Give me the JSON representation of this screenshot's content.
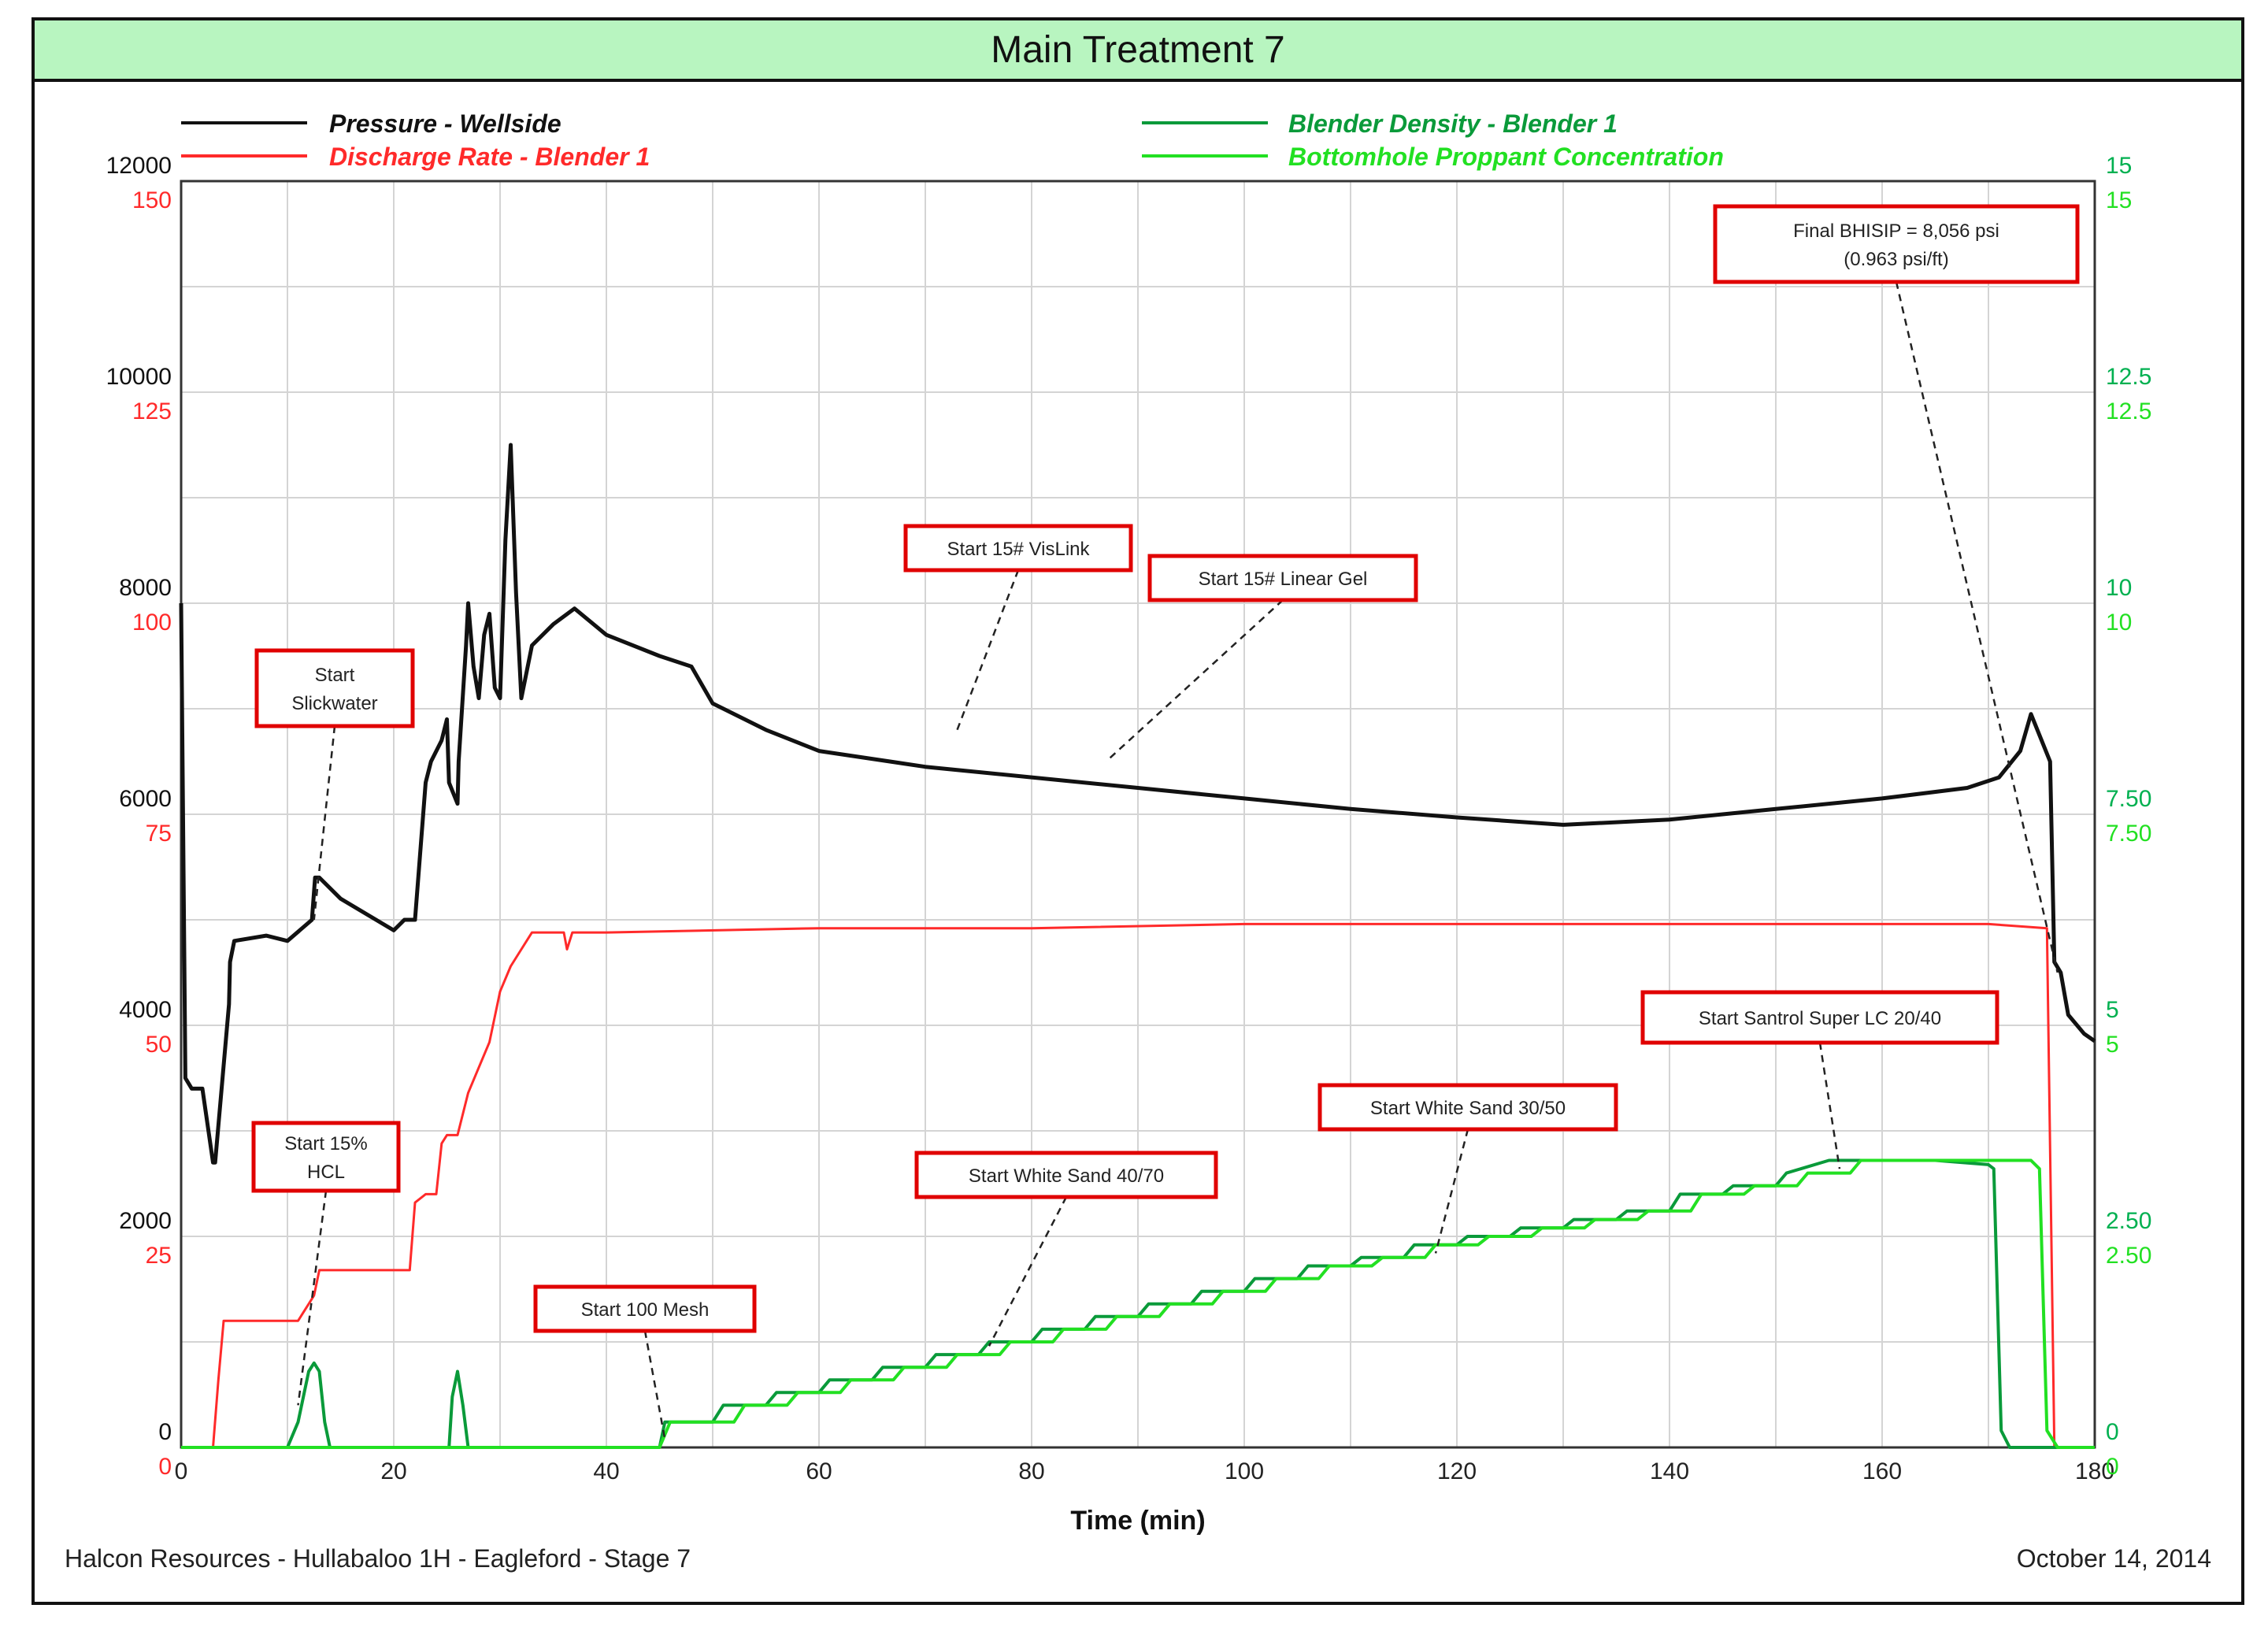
{
  "chart_data": {
    "type": "line",
    "title": "Main Treatment 7",
    "xlabel": "Time (min)",
    "xlim": [
      0,
      180
    ],
    "x_ticks": [
      0,
      20,
      40,
      60,
      80,
      100,
      120,
      140,
      160,
      180
    ],
    "axes": {
      "pressure": {
        "range": [
          0,
          12000
        ],
        "ticks": [
          0,
          2000,
          4000,
          6000,
          8000,
          10000,
          12000
        ],
        "color": "#111111"
      },
      "rate": {
        "range": [
          0,
          150
        ],
        "ticks": [
          0,
          25,
          50,
          75,
          100,
          125,
          150
        ],
        "color": "#ff2a2a"
      },
      "density": {
        "range": [
          0,
          15
        ],
        "ticks": [
          "0",
          "2.50",
          "5",
          "7.50",
          "10",
          "12.5",
          "15"
        ],
        "color": "#00b050"
      },
      "concentration": {
        "range": [
          0,
          15
        ],
        "ticks": [
          "0",
          "2.50",
          "5",
          "7.50",
          "10",
          "12.5",
          "15"
        ],
        "color": "#22e022"
      }
    },
    "legend": [
      {
        "name": "Pressure - Wellside",
        "color": "#111111"
      },
      {
        "name": "Discharge Rate - Blender 1",
        "color": "#ff2a2a"
      },
      {
        "name": "Blender Density - Blender 1",
        "color": "#0a9a3a"
      },
      {
        "name": "Bottomhole Proppant Concentration",
        "color": "#22e022"
      }
    ],
    "series": [
      {
        "name": "Pressure - Wellside",
        "axis": "pressure",
        "x": [
          0,
          0.4,
          1,
          1.2,
          2,
          3,
          3.2,
          4.5,
          4.6,
          5,
          8,
          10,
          12.3,
          12.6,
          13,
          15,
          20,
          21,
          22,
          23,
          23.5,
          24.5,
          25,
          25.2,
          26,
          26.1,
          26.8,
          27,
          27.5,
          28,
          28.5,
          29,
          29.5,
          30,
          30.5,
          31,
          31.5,
          32,
          33,
          35,
          37,
          40,
          45,
          48,
          50,
          55,
          60,
          70,
          80,
          90,
          100,
          110,
          120,
          130,
          140,
          150,
          160,
          168,
          171,
          173,
          174,
          175,
          175.8,
          176.2,
          176.8,
          177.5,
          179,
          180
        ],
        "y": [
          8000,
          3500,
          3400,
          3400,
          3400,
          2700,
          2700,
          4200,
          4600,
          4800,
          4850,
          4800,
          5000,
          5400,
          5400,
          5200,
          4900,
          5000,
          5000,
          6300,
          6500,
          6700,
          6900,
          6300,
          6100,
          6500,
          7600,
          8000,
          7400,
          7100,
          7700,
          7900,
          7200,
          7100,
          8600,
          9500,
          8100,
          7100,
          7600,
          7800,
          7950,
          7700,
          7500,
          7400,
          7050,
          6800,
          6600,
          6450,
          6350,
          6250,
          6150,
          6050,
          5970,
          5900,
          5950,
          6050,
          6150,
          6250,
          6350,
          6600,
          6950,
          6700,
          6500,
          4600,
          4500,
          4100,
          3920,
          3850
        ]
      },
      {
        "name": "Discharge Rate - Blender 1",
        "axis": "rate",
        "x": [
          0,
          3,
          3.5,
          4,
          5,
          10,
          11,
          12,
          12.5,
          13,
          20,
          21.5,
          22,
          23,
          23.2,
          24,
          24.5,
          25,
          26,
          27,
          28,
          29,
          30,
          31,
          32,
          33,
          35,
          36,
          36.3,
          36.8,
          40,
          60,
          80,
          100,
          120,
          140,
          160,
          170,
          175.5,
          176.2,
          177,
          180
        ],
        "y": [
          0,
          0,
          8,
          15,
          15,
          15,
          15,
          17,
          18,
          21,
          21,
          21,
          29,
          30,
          30,
          30,
          36,
          37,
          37,
          42,
          45,
          48,
          54,
          57,
          59,
          61,
          61,
          61,
          59,
          61,
          61,
          61.5,
          61.5,
          62,
          62,
          62,
          62,
          62,
          61.5,
          0,
          0,
          0
        ]
      },
      {
        "name": "Blender Density - Blender 1",
        "axis": "density",
        "x": [
          0,
          10,
          11,
          12,
          12.5,
          13,
          13.5,
          14,
          15,
          25.2,
          25.5,
          26,
          26.5,
          27,
          45,
          45.5,
          50,
          51,
          55,
          56,
          60,
          61,
          65,
          66,
          70,
          71,
          75,
          76,
          80,
          81,
          85,
          86,
          90,
          91,
          95,
          96,
          100,
          101,
          105,
          106,
          110,
          111,
          115,
          116,
          120,
          121,
          125,
          126,
          130,
          131,
          135,
          136,
          140,
          141,
          145,
          146,
          150,
          151,
          155,
          160,
          165,
          170,
          170.5,
          171.2,
          172,
          180
        ],
        "y": [
          0,
          0,
          0.3,
          0.9,
          1.0,
          0.9,
          0.3,
          0,
          0,
          0,
          0.6,
          0.9,
          0.5,
          0,
          0,
          0.3,
          0.3,
          0.5,
          0.5,
          0.65,
          0.65,
          0.8,
          0.8,
          0.95,
          0.95,
          1.1,
          1.1,
          1.25,
          1.25,
          1.4,
          1.4,
          1.55,
          1.55,
          1.7,
          1.7,
          1.85,
          1.85,
          2.0,
          2.0,
          2.15,
          2.15,
          2.25,
          2.25,
          2.4,
          2.4,
          2.5,
          2.5,
          2.6,
          2.6,
          2.7,
          2.7,
          2.8,
          2.8,
          3.0,
          3.0,
          3.1,
          3.1,
          3.25,
          3.4,
          3.4,
          3.4,
          3.35,
          3.3,
          0.2,
          0,
          0
        ]
      },
      {
        "name": "Bottomhole Proppant Concentration",
        "axis": "concentration",
        "x": [
          0,
          45,
          46,
          52,
          53,
          57,
          58,
          62,
          63,
          67,
          68,
          72,
          73,
          77,
          78,
          82,
          83,
          87,
          88,
          92,
          93,
          97,
          98,
          102,
          103,
          107,
          108,
          112,
          113,
          117,
          118,
          122,
          123,
          127,
          128,
          132,
          133,
          137,
          138,
          142,
          143,
          147,
          148,
          152,
          153,
          157,
          158,
          165,
          170,
          174,
          174.8,
          175.5,
          176.5,
          180
        ],
        "y": [
          0,
          0,
          0.3,
          0.3,
          0.5,
          0.5,
          0.65,
          0.65,
          0.8,
          0.8,
          0.95,
          0.95,
          1.1,
          1.1,
          1.25,
          1.25,
          1.4,
          1.4,
          1.55,
          1.55,
          1.7,
          1.7,
          1.85,
          1.85,
          2.0,
          2.0,
          2.15,
          2.15,
          2.25,
          2.25,
          2.4,
          2.4,
          2.5,
          2.5,
          2.6,
          2.6,
          2.7,
          2.7,
          2.8,
          2.8,
          3.0,
          3.0,
          3.1,
          3.1,
          3.25,
          3.25,
          3.4,
          3.4,
          3.4,
          3.4,
          3.3,
          0.2,
          0,
          0
        ]
      }
    ],
    "annotations": [
      {
        "lines": [
          "Start",
          "Slickwater"
        ],
        "x": 12.5,
        "axis": "pressure",
        "y": 5000
      },
      {
        "lines": [
          "Start 15%",
          "HCL"
        ],
        "x": 11,
        "axis": "density",
        "y": 0.5
      },
      {
        "lines": [
          "Start 100 Mesh"
        ],
        "x": 45.5,
        "axis": "density",
        "y": 0.1
      },
      {
        "lines": [
          "Start White Sand 40/70"
        ],
        "x": 76,
        "axis": "density",
        "y": 1.2
      },
      {
        "lines": [
          "Start 15# VisLink"
        ],
        "x": 73,
        "axis": "pressure",
        "y": 6800
      },
      {
        "lines": [
          "Start 15# Linear Gel"
        ],
        "x": 87,
        "axis": "pressure",
        "y": 6500
      },
      {
        "lines": [
          "Start White Sand 30/50"
        ],
        "x": 118,
        "axis": "density",
        "y": 2.3
      },
      {
        "lines": [
          "Start Santrol Super LC 20/40"
        ],
        "x": 156,
        "axis": "density",
        "y": 3.3
      },
      {
        "lines": [
          "Final BHISIP = 8,056 psi",
          "(0.963 psi/ft)"
        ],
        "x": 176.5,
        "axis": "pressure",
        "y": 4500
      }
    ]
  },
  "footer": {
    "left": "Halcon Resources - Hullabaloo 1H - Eagleford - Stage 7",
    "right": "October 14, 2014"
  }
}
